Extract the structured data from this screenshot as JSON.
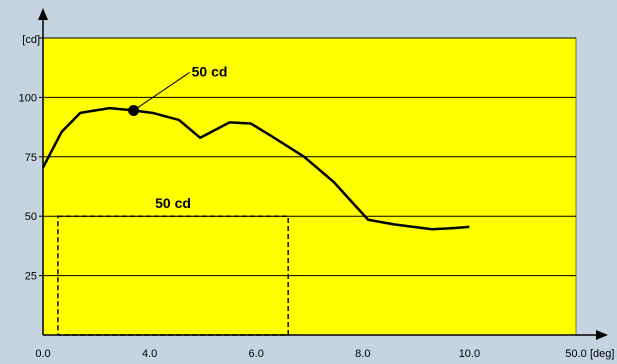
{
  "colors": {
    "background": "#c6d4e1",
    "plot_area": "#ffff00",
    "grid": "#000000",
    "line": "#000000"
  },
  "chart_data": {
    "type": "line",
    "title": "",
    "xlabel": "",
    "ylabel": "",
    "y_unit_label": "[cd]",
    "x_unit_label": "[deg]",
    "x_ticks": [
      "0.0",
      "4.0",
      "6.0",
      "8.0",
      "10.0",
      "50.0"
    ],
    "y_ticks": [
      "25",
      "50",
      "75",
      "100"
    ],
    "ylim": [
      0,
      125
    ],
    "grid": true,
    "series": [
      {
        "x": [
          0.0,
          0.35,
          0.7,
          1.25,
          1.7,
          2.05,
          2.55,
          2.95,
          3.5,
          3.9,
          4.3,
          4.9,
          5.45,
          6.1,
          6.6,
          7.3,
          7.7,
          8.0
        ],
        "y": [
          70.5,
          85.5,
          93.5,
          95.5,
          94.5,
          93.5,
          90.5,
          83.0,
          89.5,
          89.0,
          83.5,
          75.0,
          64.5,
          48.5,
          46.5,
          44.5,
          45.0,
          45.5
        ]
      }
    ],
    "marker": {
      "x": 1.7,
      "y": 94.5,
      "label": "50 cd"
    },
    "box": {
      "x0": 0.28,
      "x1": 4.6,
      "y0": 0,
      "y1": 50,
      "label": "50 cd"
    }
  }
}
